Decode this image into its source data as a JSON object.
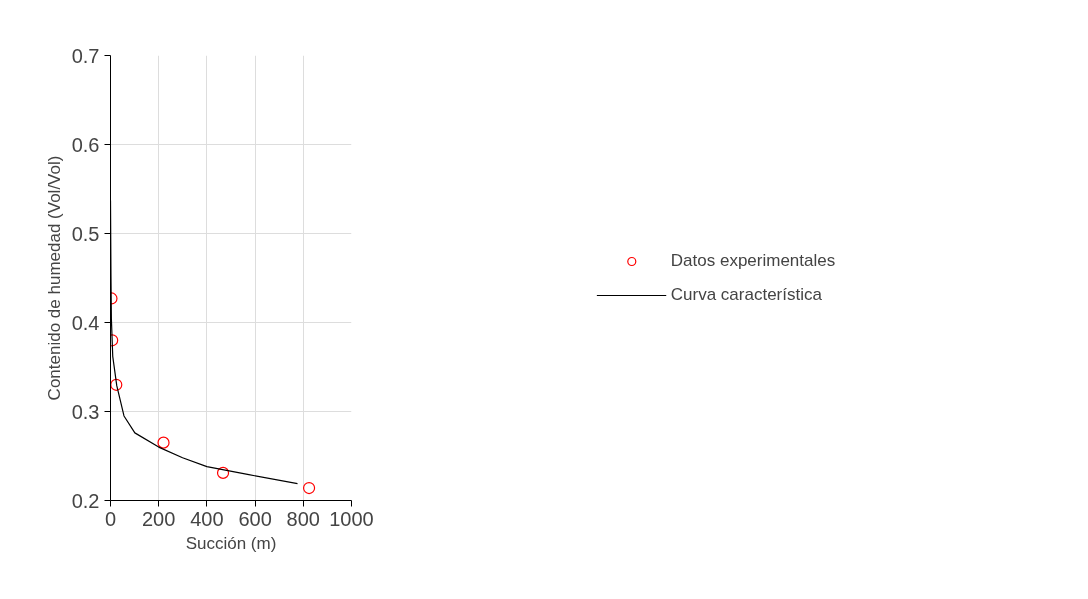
{
  "chart_data": {
    "type": "scatter",
    "xlabel": "Succión (m)",
    "ylabel": "Contenido de humedad (Vol/Vol)",
    "xlim": [
      0,
      1000
    ],
    "ylim": [
      0.2,
      0.7
    ],
    "xticks": [
      0,
      200,
      400,
      600,
      800,
      1000
    ],
    "yticks": [
      0.2,
      0.3,
      0.4,
      0.5,
      0.6,
      0.7
    ],
    "grid": true,
    "legend": "right",
    "series": [
      {
        "name": "Datos experimentales",
        "marker": "circle",
        "color": "#ff0000",
        "x": [
          4,
          7,
          24,
          220,
          467,
          824
        ],
        "values": [
          0.427,
          0.38,
          0.33,
          0.265,
          0.231,
          0.214
        ]
      },
      {
        "name": "Curva característica",
        "type": "line",
        "marker": "none",
        "line_style": "solid",
        "color": "#000000",
        "x": [
          0,
          1.9,
          3.7,
          9.3,
          26,
          56,
          101,
          200,
          299,
          400,
          574,
          776
        ],
        "values": [
          0.537,
          0.454,
          0.404,
          0.362,
          0.329,
          0.295,
          0.276,
          0.26,
          0.248,
          0.238,
          0.229,
          0.219
        ]
      }
    ]
  }
}
